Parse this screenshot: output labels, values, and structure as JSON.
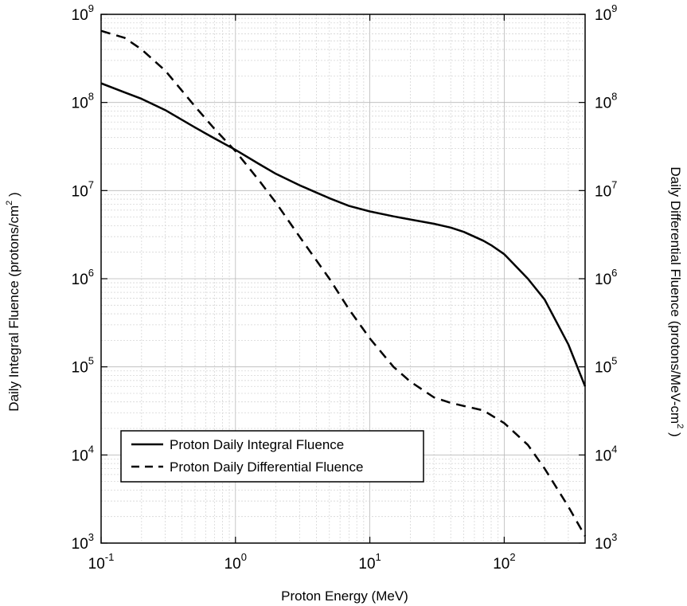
{
  "chart_data": {
    "type": "line",
    "title": "",
    "xlabel": "Proton Energy (MeV)",
    "ylabel_left": {
      "text": "Daily Integral Fluence (protons/cm",
      "sup": "2",
      "tail": " )"
    },
    "ylabel_right": {
      "text": "Daily Differential Fluence (protons/MeV-cm",
      "sup": "2",
      "tail": " )"
    },
    "x_scale": "log",
    "y_scale": "log",
    "xlim": [
      0.1,
      400
    ],
    "ylim": [
      1000,
      1000000000
    ],
    "grid": true,
    "x_ticks": [
      {
        "value": 0.1,
        "base": "10",
        "exp": "-1"
      },
      {
        "value": 1,
        "base": "10",
        "exp": "0"
      },
      {
        "value": 10,
        "base": "10",
        "exp": "1"
      },
      {
        "value": 100,
        "base": "10",
        "exp": "2"
      }
    ],
    "y_ticks": [
      {
        "value": 1000,
        "base": "10",
        "exp": "3"
      },
      {
        "value": 10000,
        "base": "10",
        "exp": "4"
      },
      {
        "value": 100000,
        "base": "10",
        "exp": "5"
      },
      {
        "value": 1000000,
        "base": "10",
        "exp": "6"
      },
      {
        "value": 10000000,
        "base": "10",
        "exp": "7"
      },
      {
        "value": 100000000,
        "base": "10",
        "exp": "8"
      },
      {
        "value": 1000000000,
        "base": "10",
        "exp": "9"
      }
    ],
    "legend_position": "lower-left",
    "series": [
      {
        "name": "Proton Daily Integral Fluence",
        "style": "solid",
        "color": "#000000",
        "x": [
          0.1,
          0.15,
          0.2,
          0.3,
          0.5,
          0.7,
          1,
          1.5,
          2,
          3,
          4,
          5,
          7,
          10,
          15,
          20,
          30,
          40,
          50,
          60,
          70,
          80,
          100,
          150,
          200,
          300,
          400
        ],
        "y": [
          165000000,
          130000000,
          110000000,
          82000000,
          52000000,
          39000000,
          29000000,
          20000000,
          15500000,
          11500000,
          9500000,
          8200000,
          6700000,
          5800000,
          5100000,
          4700000,
          4200000,
          3800000,
          3400000,
          3000000,
          2700000,
          2400000,
          1900000,
          1000000,
          580000,
          180000,
          60000
        ]
      },
      {
        "name": "Proton Daily Differential Fluence",
        "style": "dashed",
        "color": "#000000",
        "x": [
          0.1,
          0.15,
          0.2,
          0.3,
          0.5,
          0.7,
          1,
          1.5,
          2,
          3,
          5,
          7,
          10,
          15,
          20,
          30,
          40,
          50,
          70,
          100,
          150,
          200,
          300,
          400
        ],
        "y": [
          650000000,
          540000000,
          400000000,
          230000000,
          90000000,
          50000000,
          28000000,
          13000000,
          7300000,
          3000000,
          1000000,
          450000,
          210000,
          100000,
          68000,
          45000,
          39000,
          36000,
          32000,
          23000,
          13000,
          7000,
          2600,
          1200
        ]
      }
    ]
  }
}
